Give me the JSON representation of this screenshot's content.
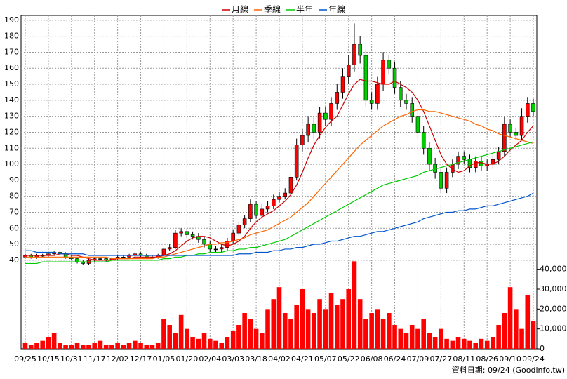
{
  "chart_data": {
    "type": "candlestick",
    "categories": [
      "09/25",
      null,
      null,
      null,
      "10/15",
      null,
      null,
      null,
      "10/31",
      null,
      null,
      null,
      "11/17",
      null,
      null,
      null,
      "12/02",
      null,
      null,
      null,
      "12/17",
      null,
      null,
      null,
      "01/05",
      null,
      null,
      null,
      "01/20",
      null,
      null,
      null,
      "02/04",
      null,
      null,
      null,
      "03/03",
      null,
      null,
      null,
      "03/18",
      null,
      null,
      null,
      "04/02",
      null,
      null,
      null,
      "04/21",
      null,
      null,
      null,
      "05/07",
      null,
      null,
      null,
      "05/22",
      null,
      null,
      null,
      "06/08",
      null,
      null,
      null,
      "06/24",
      null,
      null,
      null,
      "07/09",
      null,
      null,
      null,
      "07/27",
      null,
      null,
      null,
      "08/11",
      null,
      null,
      null,
      "08/26",
      null,
      null,
      null,
      "09/10",
      null,
      null,
      null,
      "09/24"
    ],
    "open": [
      42,
      43,
      42,
      43,
      43,
      44,
      45,
      44,
      42,
      41,
      39,
      38,
      40,
      41,
      41,
      40,
      41,
      42,
      42,
      43,
      44,
      43,
      42,
      42,
      43,
      47,
      48,
      57,
      58,
      56,
      55,
      53,
      50,
      47,
      47,
      48,
      52,
      57,
      62,
      66,
      75,
      68,
      72,
      74,
      78,
      80,
      82,
      92,
      112,
      118,
      125,
      120,
      132,
      128,
      138,
      145,
      155,
      162,
      175,
      168,
      140,
      138,
      150,
      165,
      160,
      148,
      140,
      138,
      130,
      120,
      110,
      100,
      95,
      85,
      95,
      100,
      105,
      103,
      98,
      102,
      99,
      100,
      103,
      108,
      125,
      120,
      118,
      130,
      138
    ],
    "high": [
      44,
      44,
      44,
      44,
      45,
      46,
      46,
      45,
      43,
      42,
      40,
      41,
      42,
      42,
      42,
      42,
      43,
      43,
      44,
      45,
      45,
      44,
      43,
      44,
      48,
      50,
      59,
      60,
      60,
      58,
      57,
      55,
      52,
      49,
      50,
      54,
      59,
      64,
      68,
      78,
      77,
      75,
      77,
      81,
      83,
      85,
      96,
      116,
      122,
      130,
      130,
      136,
      136,
      142,
      150,
      160,
      168,
      188,
      180,
      172,
      145,
      155,
      170,
      168,
      164,
      152,
      144,
      142,
      134,
      124,
      114,
      104,
      98,
      98,
      103,
      108,
      108,
      106,
      105,
      105,
      103,
      106,
      111,
      130,
      128,
      123,
      135,
      142,
      141
    ],
    "low": [
      41,
      41,
      41,
      42,
      42,
      43,
      43,
      41,
      40,
      38,
      37,
      37,
      39,
      40,
      39,
      39,
      40,
      41,
      41,
      42,
      42,
      41,
      41,
      41,
      42,
      46,
      47,
      55,
      54,
      53,
      51,
      48,
      45,
      45,
      45,
      46,
      50,
      55,
      60,
      64,
      66,
      66,
      70,
      72,
      76,
      78,
      80,
      90,
      108,
      114,
      116,
      116,
      124,
      124,
      134,
      141,
      150,
      158,
      163,
      136,
      134,
      134,
      146,
      156,
      144,
      136,
      134,
      126,
      116,
      106,
      96,
      91,
      82,
      82,
      92,
      97,
      100,
      95,
      95,
      96,
      96,
      97,
      100,
      105,
      117,
      115,
      115,
      126,
      130
    ],
    "close": [
      43,
      42,
      43,
      43,
      44,
      45,
      44,
      42,
      41,
      39,
      38,
      40,
      41,
      41,
      40,
      41,
      42,
      42,
      43,
      44,
      43,
      42,
      42,
      43,
      47,
      48,
      57,
      58,
      56,
      55,
      53,
      50,
      47,
      47,
      48,
      52,
      57,
      62,
      66,
      75,
      68,
      72,
      74,
      78,
      80,
      82,
      92,
      112,
      118,
      125,
      120,
      132,
      128,
      138,
      145,
      155,
      162,
      175,
      168,
      140,
      138,
      150,
      165,
      160,
      148,
      140,
      138,
      130,
      120,
      110,
      100,
      95,
      85,
      95,
      100,
      105,
      103,
      98,
      102,
      99,
      100,
      103,
      108,
      125,
      120,
      118,
      130,
      138,
      133
    ],
    "up_color": "#ff0000",
    "down_color": "#00cc00",
    "series": [
      {
        "name": "月線",
        "color": "#cc0000",
        "values": [
          43,
          43,
          43,
          43,
          43,
          43,
          44,
          44,
          43,
          43,
          42,
          41,
          40,
          40,
          40,
          40,
          41,
          41,
          41,
          42,
          42,
          42,
          42,
          42,
          43,
          44,
          46,
          49,
          52,
          54,
          55,
          55,
          54,
          52,
          50,
          49,
          50,
          52,
          55,
          60,
          64,
          67,
          69,
          71,
          74,
          77,
          81,
          87,
          95,
          104,
          112,
          118,
          123,
          127,
          130,
          137,
          144,
          150,
          153,
          152,
          152,
          151,
          150,
          150,
          152,
          150,
          148,
          145,
          140,
          133,
          124,
          115,
          106,
          100,
          97,
          95,
          96,
          99,
          101,
          101,
          100,
          100,
          102,
          105,
          109,
          112,
          115,
          120,
          124
        ]
      },
      {
        "name": "季線",
        "color": "#ff6600",
        "values": [
          42,
          42,
          42,
          42,
          42,
          42,
          42,
          42,
          42,
          42,
          42,
          42,
          42,
          42,
          42,
          41,
          41,
          41,
          41,
          41,
          41,
          41,
          41,
          42,
          42,
          43,
          44,
          45,
          46,
          47,
          48,
          49,
          50,
          50,
          51,
          51,
          52,
          53,
          54,
          56,
          57,
          58,
          59,
          61,
          63,
          65,
          67,
          70,
          73,
          76,
          80,
          84,
          88,
          92,
          96,
          100,
          104,
          108,
          112,
          115,
          118,
          121,
          124,
          126,
          128,
          130,
          131,
          133,
          134,
          134,
          133,
          133,
          132,
          131,
          130,
          129,
          128,
          127,
          125,
          124,
          122,
          121,
          119,
          118,
          117,
          116,
          115,
          114,
          113
        ]
      },
      {
        "name": "半年",
        "color": "#00cc00",
        "values": [
          38,
          38,
          38,
          39,
          39,
          39,
          39,
          39,
          39,
          39,
          39,
          39,
          39,
          39,
          39,
          40,
          40,
          40,
          40,
          40,
          40,
          40,
          40,
          40,
          41,
          41,
          42,
          42,
          43,
          43,
          44,
          44,
          45,
          45,
          45,
          46,
          46,
          47,
          47,
          48,
          48,
          49,
          50,
          51,
          52,
          53,
          55,
          57,
          59,
          61,
          63,
          65,
          67,
          69,
          71,
          73,
          75,
          77,
          79,
          81,
          83,
          85,
          87,
          88,
          89,
          90,
          91,
          92,
          93,
          95,
          96,
          97,
          98,
          99,
          100,
          101,
          102,
          103,
          104,
          105,
          106,
          107,
          108,
          109,
          110,
          111,
          112,
          113,
          114
        ]
      },
      {
        "name": "年線",
        "color": "#0055cc",
        "values": [
          46,
          46,
          45,
          45,
          45,
          45,
          44,
          44,
          44,
          44,
          44,
          43,
          43,
          43,
          43,
          43,
          43,
          43,
          43,
          43,
          43,
          43,
          43,
          43,
          43,
          43,
          43,
          43,
          43,
          43,
          43,
          43,
          43,
          43,
          43,
          43,
          43,
          44,
          44,
          44,
          45,
          45,
          45,
          46,
          46,
          47,
          47,
          48,
          48,
          49,
          50,
          50,
          51,
          52,
          52,
          53,
          54,
          55,
          55,
          56,
          57,
          58,
          58,
          59,
          60,
          61,
          62,
          63,
          64,
          66,
          67,
          68,
          69,
          70,
          70,
          71,
          71,
          72,
          72,
          73,
          74,
          74,
          75,
          76,
          77,
          78,
          79,
          80,
          82
        ]
      }
    ],
    "volume": {
      "color": "#ff0000",
      "values": [
        3000,
        2000,
        3000,
        4000,
        6000,
        8000,
        3000,
        2000,
        2000,
        3000,
        2000,
        2000,
        3000,
        4000,
        2000,
        2000,
        3000,
        2000,
        3000,
        4000,
        3000,
        2000,
        2000,
        3000,
        15000,
        12000,
        8000,
        17000,
        10000,
        6000,
        5000,
        8000,
        5000,
        4000,
        3000,
        6000,
        9000,
        12000,
        18000,
        15000,
        10000,
        8000,
        20000,
        25000,
        31000,
        18000,
        15000,
        22000,
        30000,
        20000,
        18000,
        25000,
        20000,
        28000,
        22000,
        25000,
        30000,
        44000,
        25000,
        15000,
        18000,
        20000,
        15000,
        18000,
        12000,
        10000,
        8000,
        12000,
        10000,
        15000,
        8000,
        6000,
        10000,
        5000,
        4000,
        6000,
        5000,
        4000,
        3000,
        5000,
        4000,
        6000,
        12000,
        18000,
        31000,
        20000,
        10000,
        27000,
        14000
      ]
    },
    "ylim": [
      36,
      193
    ],
    "yticks": [
      40,
      50,
      60,
      70,
      80,
      90,
      100,
      110,
      120,
      130,
      140,
      150,
      160,
      170,
      180,
      190
    ],
    "y2lim": [
      0,
      42000
    ],
    "y2ticks": [
      0,
      {
        "value": 10000,
        "label": "10,000"
      },
      {
        "value": 20000,
        "label": "20,000"
      },
      {
        "value": 30000,
        "label": "30,000"
      },
      {
        "value": 40000,
        "label": "40,000"
      }
    ],
    "grid": true,
    "source_note": "資料日期: 09/24 (Goodinfo.tw)"
  }
}
